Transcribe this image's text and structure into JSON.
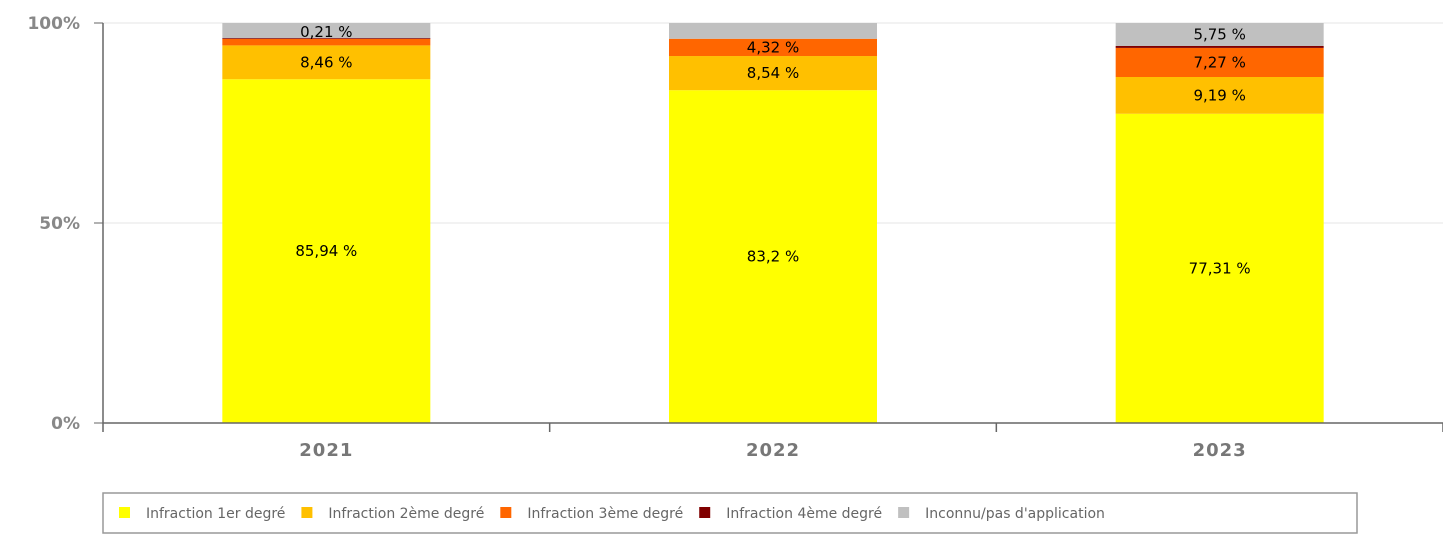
{
  "chart_data": {
    "type": "bar",
    "stacked": true,
    "normalized": true,
    "categories": [
      "2021",
      "2022",
      "2023"
    ],
    "series": [
      {
        "name": "Infraction 1er degré",
        "color": "#ffff00",
        "values": [
          85.94,
          83.2,
          77.31
        ],
        "labels": [
          "85,94 %",
          "83,2 %",
          "77,31 %"
        ]
      },
      {
        "name": "Infraction 2ème degré",
        "color": "#ffc000",
        "values": [
          8.46,
          8.54,
          9.19
        ],
        "labels": [
          "8,46 %",
          "8,54 %",
          "9,19 %"
        ]
      },
      {
        "name": "Infraction 3ème degré",
        "color": "#ff6600",
        "values": [
          1.6,
          4.32,
          7.27
        ],
        "labels": [
          "",
          "4,32 %",
          "7,27 %"
        ]
      },
      {
        "name": "Infraction 4ème degré",
        "color": "#800000",
        "values": [
          0.21,
          0,
          0.48
        ],
        "labels": [
          "0,21 %",
          "",
          ""
        ]
      },
      {
        "name": "Inconnu/pas d'application",
        "color": "#c0c0c0",
        "values": [
          3.79,
          3.94,
          5.75
        ],
        "labels": [
          "",
          "",
          "5,75 %"
        ]
      }
    ],
    "yticks": [
      "0%",
      "50%",
      "100%"
    ],
    "ylim": [
      0,
      100
    ],
    "legend": "bottom"
  }
}
